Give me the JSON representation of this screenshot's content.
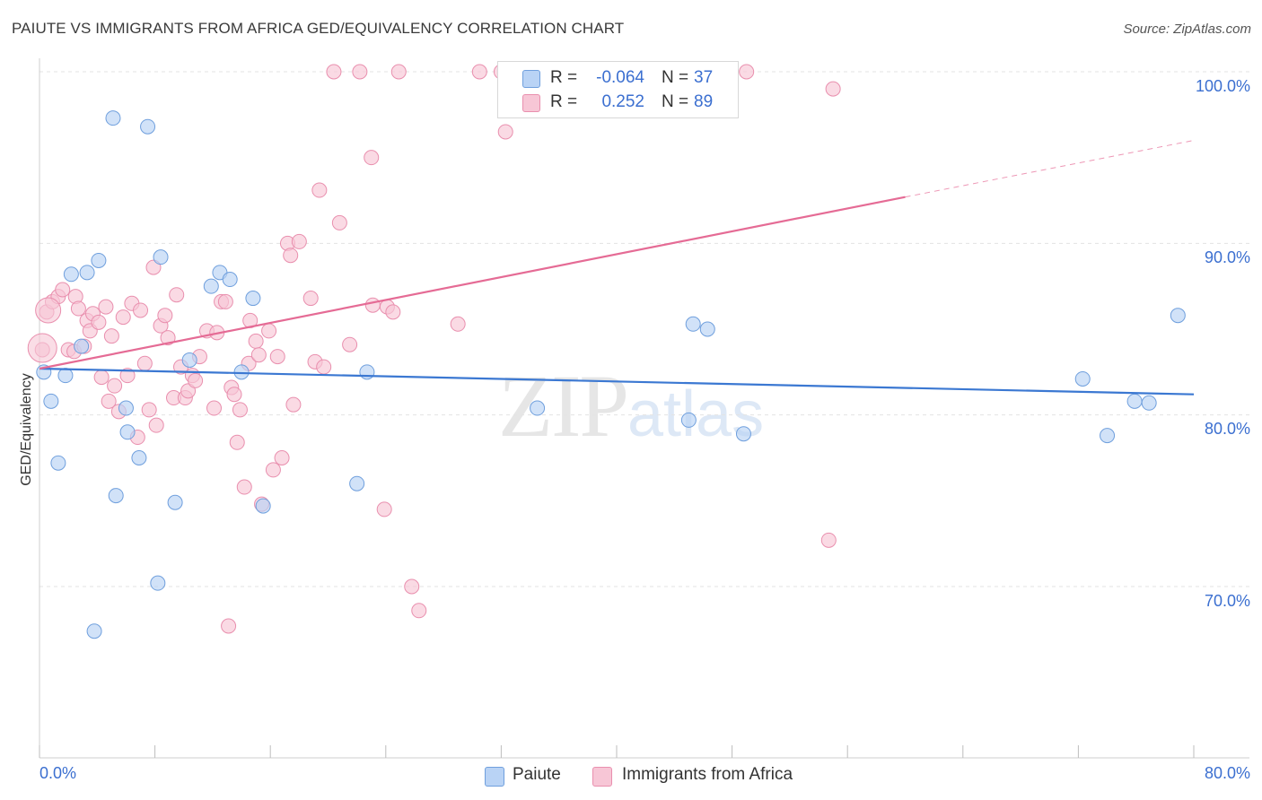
{
  "header": {
    "title": "PAIUTE VS IMMIGRANTS FROM AFRICA GED/EQUIVALENCY CORRELATION CHART",
    "source": "Source: ZipAtlas.com"
  },
  "watermark": {
    "zip": "ZIP",
    "atlas": "atlas"
  },
  "stats": {
    "paiute": {
      "r_label": "R =",
      "r_value": "-0.064",
      "n_label": "N =",
      "n_value": "37"
    },
    "africa": {
      "r_label": "R =",
      "r_value": "0.252",
      "n_label": "N =",
      "n_value": "89"
    }
  },
  "legend": {
    "paiute": "Paiute",
    "africa": "Immigrants from Africa"
  },
  "colors": {
    "paiute_fill": "#b9d3f5",
    "paiute_stroke": "#6f9fdd",
    "paiute_line": "#3b78d2",
    "africa_fill": "#f7c6d6",
    "africa_stroke": "#e98fae",
    "africa_line": "#e56b95",
    "tick_text": "#3b6fd0",
    "grid": "#e3e3e3"
  },
  "chart_data": {
    "type": "scatter",
    "title": "PAIUTE VS IMMIGRANTS FROM AFRICA GED/EQUIVALENCY CORRELATION CHART",
    "xlabel": "",
    "ylabel": "GED/Equivalency",
    "xlim": [
      0,
      80
    ],
    "ylim": [
      60,
      102
    ],
    "x_tick_labels": [
      "0.0%",
      "80.0%"
    ],
    "y_ticks": [
      70,
      80,
      90,
      100
    ],
    "y_tick_labels": [
      "70.0%",
      "80.0%",
      "90.0%",
      "100.0%"
    ],
    "grid": true,
    "legend_position": "bottom",
    "series": [
      {
        "name": "Paiute",
        "points": [
          [
            0.3,
            82.5
          ],
          [
            0.8,
            80.8
          ],
          [
            1.3,
            77.2
          ],
          [
            1.8,
            82.3
          ],
          [
            2.2,
            88.2
          ],
          [
            2.9,
            84.0
          ],
          [
            3.3,
            88.3
          ],
          [
            4.1,
            89.0
          ],
          [
            3.8,
            67.4
          ],
          [
            5.1,
            97.3
          ],
          [
            5.3,
            75.3
          ],
          [
            6.0,
            80.4
          ],
          [
            6.1,
            79.0
          ],
          [
            6.9,
            77.5
          ],
          [
            7.5,
            96.8
          ],
          [
            8.2,
            70.2
          ],
          [
            8.4,
            89.2
          ],
          [
            9.4,
            74.9
          ],
          [
            10.4,
            83.2
          ],
          [
            11.9,
            87.5
          ],
          [
            12.5,
            88.3
          ],
          [
            13.2,
            87.9
          ],
          [
            14.0,
            82.5
          ],
          [
            14.8,
            86.8
          ],
          [
            15.5,
            74.7
          ],
          [
            22.0,
            76.0
          ],
          [
            22.7,
            82.5
          ],
          [
            34.5,
            80.4
          ],
          [
            45.3,
            85.3
          ],
          [
            46.3,
            85.0
          ],
          [
            45.0,
            79.7
          ],
          [
            48.8,
            78.9
          ],
          [
            72.3,
            82.1
          ],
          [
            74.0,
            78.8
          ],
          [
            75.9,
            80.8
          ],
          [
            76.9,
            80.7
          ],
          [
            78.9,
            85.8
          ]
        ],
        "trend": {
          "x": [
            0,
            80
          ],
          "y": [
            82.7,
            81.2
          ]
        }
      },
      {
        "name": "Immigrants from Africa",
        "points": [
          [
            0.2,
            83.8
          ],
          [
            0.5,
            86.0
          ],
          [
            0.9,
            86.6
          ],
          [
            1.3,
            86.9
          ],
          [
            1.6,
            87.3
          ],
          [
            2.0,
            83.8
          ],
          [
            2.4,
            83.7
          ],
          [
            2.5,
            86.9
          ],
          [
            2.7,
            86.2
          ],
          [
            3.1,
            84.0
          ],
          [
            3.3,
            85.5
          ],
          [
            3.5,
            84.9
          ],
          [
            3.7,
            85.9
          ],
          [
            4.1,
            85.4
          ],
          [
            4.3,
            82.2
          ],
          [
            4.6,
            86.3
          ],
          [
            4.8,
            80.8
          ],
          [
            5.0,
            84.6
          ],
          [
            5.2,
            81.7
          ],
          [
            5.5,
            80.2
          ],
          [
            5.8,
            85.7
          ],
          [
            6.1,
            82.3
          ],
          [
            6.4,
            86.5
          ],
          [
            6.8,
            78.7
          ],
          [
            7.0,
            86.1
          ],
          [
            7.3,
            83.0
          ],
          [
            7.6,
            80.3
          ],
          [
            7.9,
            88.6
          ],
          [
            8.1,
            79.4
          ],
          [
            8.4,
            85.2
          ],
          [
            8.7,
            85.8
          ],
          [
            8.9,
            84.5
          ],
          [
            9.3,
            81.0
          ],
          [
            9.5,
            87.0
          ],
          [
            9.8,
            82.8
          ],
          [
            10.1,
            81.0
          ],
          [
            10.3,
            81.4
          ],
          [
            10.6,
            82.3
          ],
          [
            10.8,
            82.0
          ],
          [
            11.1,
            83.4
          ],
          [
            11.6,
            84.9
          ],
          [
            12.1,
            80.4
          ],
          [
            12.3,
            84.8
          ],
          [
            12.6,
            86.6
          ],
          [
            12.9,
            86.6
          ],
          [
            13.3,
            81.6
          ],
          [
            13.5,
            81.2
          ],
          [
            13.9,
            80.3
          ],
          [
            13.7,
            78.4
          ],
          [
            14.2,
            75.8
          ],
          [
            14.5,
            83.0
          ],
          [
            14.6,
            85.5
          ],
          [
            15.0,
            84.3
          ],
          [
            15.2,
            83.5
          ],
          [
            15.4,
            74.8
          ],
          [
            15.9,
            84.9
          ],
          [
            16.2,
            76.8
          ],
          [
            16.5,
            83.4
          ],
          [
            16.8,
            77.5
          ],
          [
            17.2,
            90.0
          ],
          [
            17.4,
            89.3
          ],
          [
            17.6,
            80.6
          ],
          [
            18.0,
            90.1
          ],
          [
            18.8,
            86.8
          ],
          [
            19.1,
            83.1
          ],
          [
            19.4,
            93.1
          ],
          [
            19.7,
            82.8
          ],
          [
            20.4,
            100.0
          ],
          [
            20.8,
            91.2
          ],
          [
            21.5,
            84.1
          ],
          [
            22.2,
            100.0
          ],
          [
            23.0,
            95.0
          ],
          [
            23.1,
            86.4
          ],
          [
            23.9,
            74.5
          ],
          [
            24.1,
            86.3
          ],
          [
            24.5,
            86.0
          ],
          [
            24.9,
            100.0
          ],
          [
            25.8,
            70.0
          ],
          [
            26.3,
            68.6
          ],
          [
            29.0,
            85.3
          ],
          [
            30.5,
            100.0
          ],
          [
            32.0,
            100.0
          ],
          [
            32.3,
            96.5
          ],
          [
            33.0,
            100.0
          ],
          [
            13.1,
            67.7
          ],
          [
            36.1,
            100.0
          ],
          [
            49.0,
            100.0
          ],
          [
            55.0,
            99.0
          ],
          [
            54.7,
            72.7
          ]
        ],
        "trend": {
          "x": [
            0,
            60
          ],
          "y": [
            82.7,
            92.7
          ]
        },
        "trend_extension": {
          "x": [
            60,
            80
          ],
          "y": [
            92.7,
            96.0
          ]
        }
      }
    ]
  }
}
